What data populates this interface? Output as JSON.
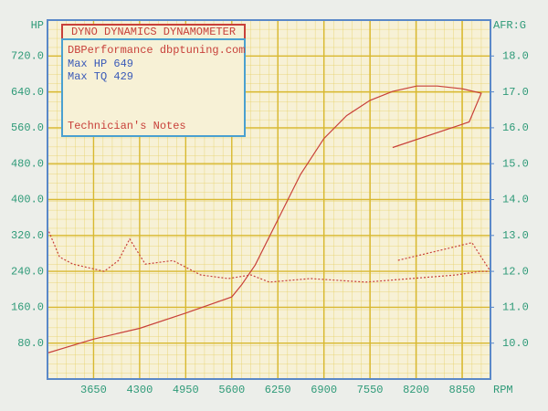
{
  "chart_data": {
    "type": "line",
    "title": "DYNO DYNAMICS DYNAMOMETER",
    "annotations": [
      "DBPerformance dbptuning.com",
      "Max HP 649",
      "Max TQ 429",
      "Technician's Notes"
    ],
    "x_label": "RPM",
    "y_label": "HP",
    "y2_label": "AFR:G",
    "xlim": [
      3000,
      9250
    ],
    "xticks": [
      3650,
      4300,
      4950,
      5600,
      6250,
      6900,
      7550,
      8200,
      8850
    ],
    "ylim": [
      0,
      800
    ],
    "yticks": [
      {
        "value": 80,
        "label": "80.0"
      },
      {
        "value": 160,
        "label": "160.0"
      },
      {
        "value": 240,
        "label": "240.0"
      },
      {
        "value": 320,
        "label": "320.0"
      },
      {
        "value": 400,
        "label": "400.0"
      },
      {
        "value": 480,
        "label": "480.0"
      },
      {
        "value": 560,
        "label": "560.0"
      },
      {
        "value": 640,
        "label": "640.0"
      },
      {
        "value": 720,
        "label": "720.0"
      }
    ],
    "y2lim": [
      9,
      19
    ],
    "y2ticks": [
      {
        "value": 10,
        "label": "10.0"
      },
      {
        "value": 11,
        "label": "11.0"
      },
      {
        "value": 12,
        "label": "12.0"
      },
      {
        "value": 13,
        "label": "13.0"
      },
      {
        "value": 14,
        "label": "14.0"
      },
      {
        "value": 15,
        "label": "15.0"
      },
      {
        "value": 16,
        "label": "16.0"
      },
      {
        "value": 17,
        "label": "17.0"
      },
      {
        "value": 18,
        "label": "18.0"
      }
    ],
    "grid": true,
    "series": [
      {
        "color": "#c8403a",
        "style": "solid",
        "x": [
          3000,
          3650,
          4300,
          4950,
          5600,
          5740,
          5930,
          6250,
          6570,
          6900,
          7220,
          7550,
          7870,
          8210,
          8500,
          8850,
          9120,
          8950,
          7870
        ],
        "values": [
          58,
          89,
          113,
          147,
          183,
          210,
          254,
          355,
          456,
          536,
          587,
          621,
          641,
          653,
          653,
          647,
          637,
          573,
          516
        ]
      },
      {
        "color": "#c8403a",
        "style": "dotted",
        "axis": "y2",
        "x": [
          3000,
          3170,
          3360,
          3800,
          4000,
          4160,
          4380,
          4770,
          5160,
          5550,
          5870,
          6130,
          6710,
          7490,
          8130,
          8770,
          9100,
          9250,
          8990,
          7930
        ],
        "values": [
          13.2,
          12.4,
          12.2,
          12.0,
          12.3,
          12.9,
          12.2,
          12.3,
          11.9,
          11.8,
          11.9,
          11.7,
          11.8,
          11.7,
          11.8,
          11.9,
          12.0,
          12.0,
          12.8,
          12.3
        ]
      }
    ]
  }
}
